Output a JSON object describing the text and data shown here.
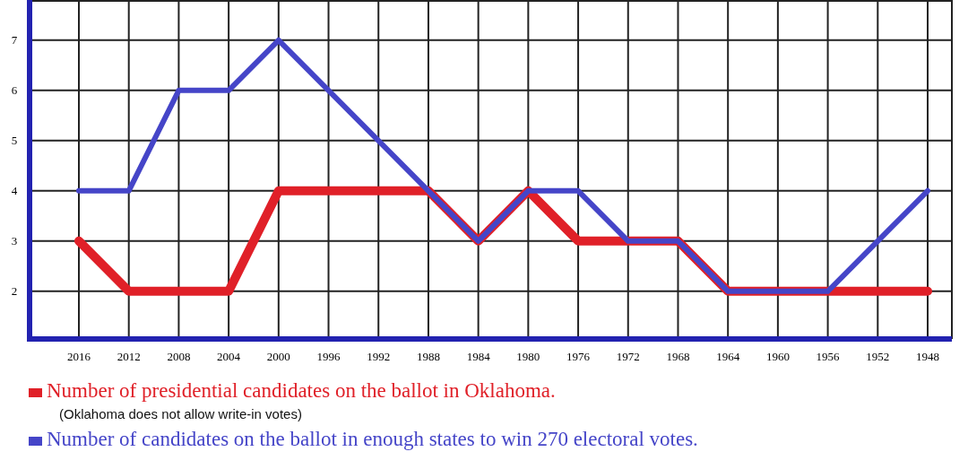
{
  "chart_data": {
    "type": "line",
    "categories": [
      "2016",
      "2012",
      "2008",
      "2004",
      "2000",
      "1996",
      "1992",
      "1988",
      "1984",
      "1980",
      "1976",
      "1972",
      "1968",
      "1964",
      "1960",
      "1956",
      "1952",
      "1948"
    ],
    "series": [
      {
        "name": "Number of presidential candidates on the ballot in Oklahoma.",
        "color": "#e02028",
        "values": [
          3,
          2,
          2,
          2,
          4,
          4,
          4,
          4,
          3,
          4,
          3,
          3,
          3,
          2,
          2,
          2,
          2,
          2
        ]
      },
      {
        "name": "Number of candidates on the ballot in enough states to win 270 electoral votes.",
        "color": "#4545c8",
        "values": [
          4,
          4,
          6,
          6,
          7,
          6,
          5,
          4,
          3,
          4,
          4,
          3,
          3,
          2,
          2,
          2,
          3,
          4
        ]
      }
    ],
    "ylim": [
      1.05,
      7.8
    ],
    "yticks": [
      2,
      3,
      4,
      5,
      6,
      7
    ],
    "grid": true,
    "legend": "bottom",
    "marker": "none",
    "line_style": "solid",
    "annotations": [
      "(Oklahoma does not allow write-in votes)"
    ]
  }
}
